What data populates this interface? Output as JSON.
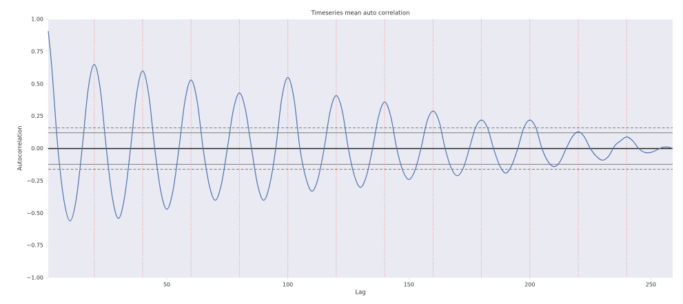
{
  "chart_data": {
    "type": "line",
    "title": "Timeseries mean auto correlation",
    "xlabel": "Lag",
    "ylabel": "Autocorrelation",
    "xlim": [
      1,
      259
    ],
    "ylim": [
      -1,
      1
    ],
    "xticks": [
      50,
      100,
      150,
      200,
      250
    ],
    "yticks": [
      {
        "value": 1,
        "label": "1.00"
      },
      {
        "value": 0.75,
        "label": "0.75"
      },
      {
        "value": 0.5,
        "label": "0.50"
      },
      {
        "value": 0.25,
        "label": "0.25"
      },
      {
        "value": 0,
        "label": "0.00"
      },
      {
        "value": -0.25,
        "label": "−0.25"
      },
      {
        "value": -0.5,
        "label": "−0.50"
      },
      {
        "value": -0.75,
        "label": "−0.75"
      },
      {
        "value": -1,
        "label": "−1.00"
      }
    ],
    "background": "#eaeaf2",
    "reference_lines": [
      {
        "value": 0.16,
        "style": "dashed",
        "color": "#808080"
      },
      {
        "value": 0.122,
        "style": "solid",
        "color": "#808080"
      },
      {
        "value": 0,
        "style": "solid",
        "color": "#222222"
      },
      {
        "value": -0.122,
        "style": "solid",
        "color": "#808080"
      },
      {
        "value": -0.16,
        "style": "dashed",
        "color": "#808080"
      }
    ],
    "vlines": {
      "values": [
        20,
        40,
        60,
        80,
        100,
        120,
        140,
        160,
        180,
        200,
        220,
        240
      ],
      "color": "#f08080",
      "style": "dotted"
    },
    "series": [
      {
        "color": "#4c72b0",
        "x": [
          1,
          2.5,
          5,
          7.5,
          10,
          12.5,
          15,
          17.5,
          20,
          22.5,
          25,
          27.5,
          30,
          32.5,
          35,
          37.5,
          40,
          42.5,
          45,
          47.5,
          50,
          52.5,
          55,
          57.5,
          60,
          62.5,
          65,
          67.5,
          70,
          72.5,
          75,
          77.5,
          80,
          82.5,
          85,
          87.5,
          90,
          92.5,
          95,
          97.5,
          100,
          102.5,
          105,
          107.5,
          110,
          112.5,
          115,
          117.5,
          120,
          122.5,
          125,
          127.5,
          130,
          132.5,
          135,
          137.5,
          140,
          142.5,
          145,
          147.5,
          150,
          152.5,
          155,
          157.5,
          160,
          162.5,
          165,
          167.5,
          170,
          172.5,
          175,
          177.5,
          180,
          182.5,
          185,
          187.5,
          190,
          192.5,
          195,
          197.5,
          200,
          202.5,
          205,
          207.5,
          210,
          212.5,
          215,
          217.5,
          220,
          222.5,
          225,
          227.5,
          230,
          232.5,
          235,
          237.5,
          240,
          242.5,
          245,
          247.5,
          250,
          252.5,
          255,
          257.5,
          259
        ],
        "values": [
          0.91,
          0.62,
          0,
          -0.4,
          -0.56,
          -0.4,
          0,
          0.46,
          0.65,
          0.46,
          0,
          -0.38,
          -0.54,
          -0.38,
          0,
          0.42,
          0.6,
          0.42,
          0,
          -0.33,
          -0.47,
          -0.33,
          0,
          0.37,
          0.53,
          0.37,
          0,
          -0.28,
          -0.4,
          -0.28,
          0,
          0.3,
          0.43,
          0.3,
          0,
          -0.28,
          -0.4,
          -0.28,
          0,
          0.39,
          0.55,
          0.39,
          0,
          -0.23,
          -0.33,
          -0.23,
          0,
          0.29,
          0.41,
          0.29,
          0,
          -0.21,
          -0.3,
          -0.21,
          0,
          0.25,
          0.36,
          0.25,
          0,
          -0.17,
          -0.24,
          -0.17,
          0,
          0.21,
          0.29,
          0.21,
          0,
          -0.15,
          -0.21,
          -0.15,
          0,
          0.16,
          0.22,
          0.16,
          0,
          -0.13,
          -0.19,
          -0.13,
          0,
          0.16,
          0.22,
          0.16,
          0,
          -0.1,
          -0.14,
          -0.1,
          0,
          0.09,
          0.13,
          0.09,
          0,
          -0.06,
          -0.09,
          -0.06,
          0.02,
          0.06,
          0.09,
          0.06,
          0,
          -0.03,
          -0.03,
          -0.01,
          0.01,
          0.01,
          0
        ]
      }
    ]
  }
}
